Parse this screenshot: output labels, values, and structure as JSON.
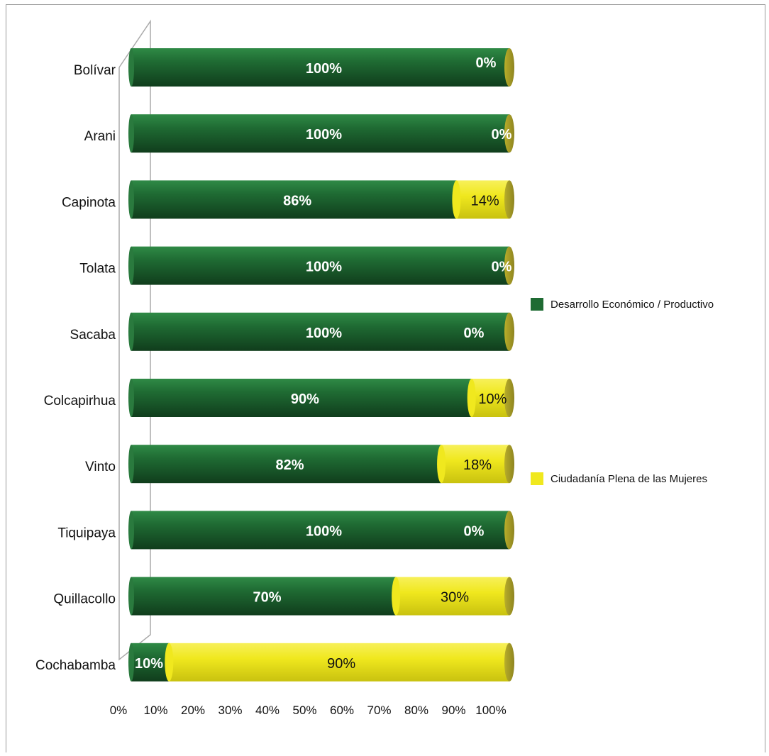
{
  "colors": {
    "green": "#1f6b33",
    "yellow": "#f0e81e",
    "axis": "#aaaaaa"
  },
  "legend": {
    "desarrollo": "Desarrollo Económico / Productivo",
    "ciudadania": "Ciudadanía Plena de las Mujeres"
  },
  "chart_data": {
    "type": "bar",
    "orientation": "horizontal-stacked",
    "categories": [
      "Bolívar",
      "Arani",
      "Capinota",
      "Tolata",
      "Sacaba",
      "Colcapirhua",
      "Vinto",
      "Tiquipaya",
      "Quillacollo",
      "Cochabamba"
    ],
    "series": [
      {
        "name": "Desarrollo Económico / Productivo",
        "values": [
          100,
          100,
          86,
          100,
          100,
          90,
          82,
          100,
          70,
          10
        ],
        "labels": [
          "100%",
          "100%",
          "86%",
          "100%",
          "100%",
          "90%",
          "82%",
          "100%",
          "70%",
          "10%"
        ]
      },
      {
        "name": "Ciudadanía Plena de las Mujeres",
        "values": [
          0,
          0,
          14,
          0,
          0,
          10,
          18,
          0,
          30,
          90
        ],
        "labels": [
          "0%",
          "0%",
          "14%",
          "0%",
          "0%",
          "10%",
          "18%",
          "0%",
          "30%",
          "90%"
        ]
      }
    ],
    "xticks": [
      "0%",
      "10%",
      "20%",
      "30%",
      "40%",
      "50%",
      "60%",
      "70%",
      "80%",
      "90%",
      "100%"
    ],
    "xlim": [
      0,
      100
    ],
    "legend_position": "right",
    "grid": false
  }
}
